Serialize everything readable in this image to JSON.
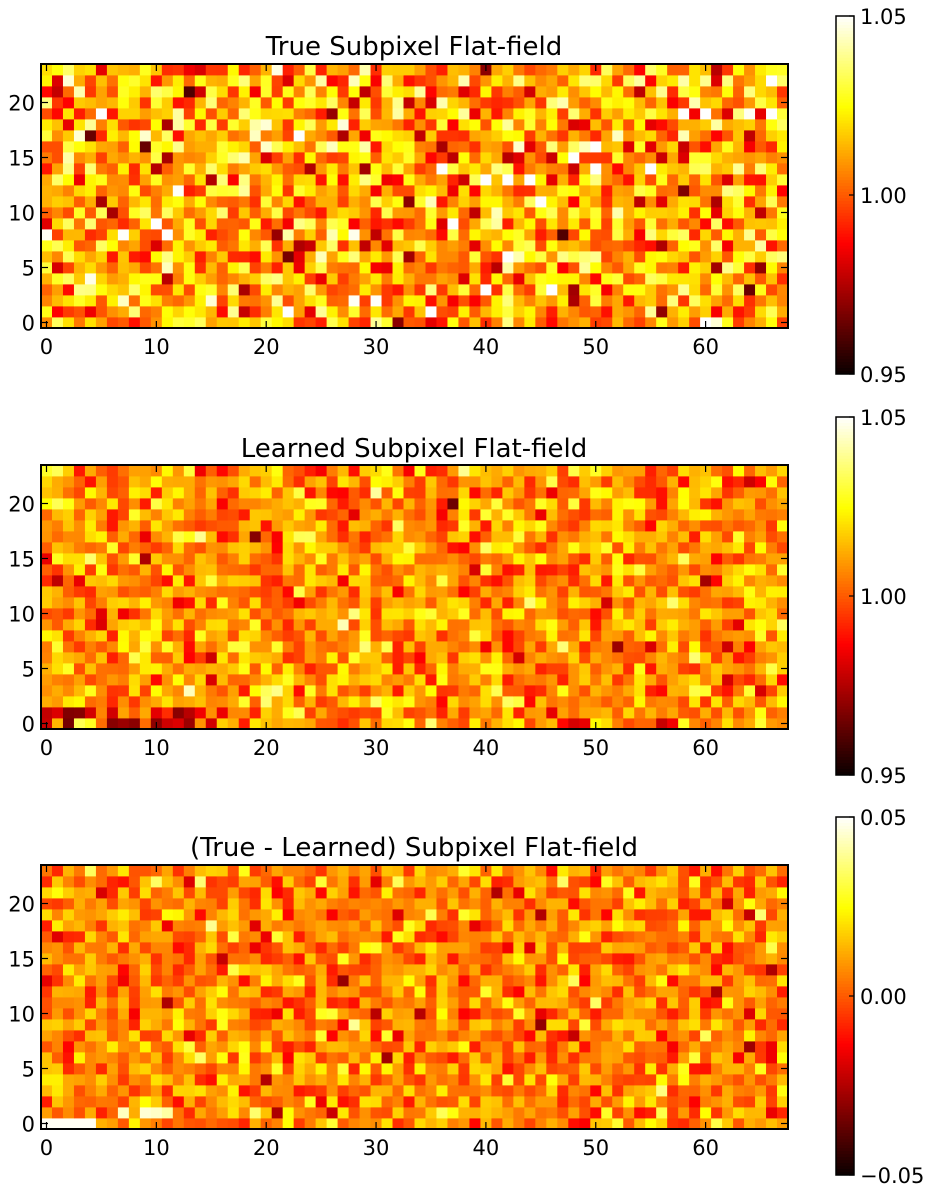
{
  "chart_data": [
    {
      "type": "heatmap",
      "title": "True Subpixel Flat-field",
      "colormap": "hot",
      "grid": false,
      "legend": "colorbar-right",
      "shape": [
        24,
        68
      ],
      "xlim": [
        -0.5,
        67.5
      ],
      "ylim": [
        -0.5,
        23.5
      ],
      "xticks": [
        0,
        10,
        20,
        30,
        40,
        50,
        60
      ],
      "yticks": [
        0,
        5,
        10,
        15,
        20
      ],
      "xtick_labels": [
        "0",
        "10",
        "20",
        "30",
        "40",
        "50",
        "60"
      ],
      "ytick_labels": [
        "0",
        "5",
        "10",
        "15",
        "20"
      ],
      "vmin": 0.95,
      "vmax": 1.05,
      "colorbar_ticks": [
        0.95,
        1.0,
        1.05
      ],
      "colorbar_labels": [
        "0.95",
        "1.00",
        "1.05"
      ],
      "pattern": "uniform-noise",
      "seed": 11
    },
    {
      "type": "heatmap",
      "title": "Learned Subpixel Flat-field",
      "colormap": "hot",
      "grid": false,
      "legend": "colorbar-right",
      "shape": [
        24,
        68
      ],
      "xlim": [
        -0.5,
        67.5
      ],
      "ylim": [
        -0.5,
        23.5
      ],
      "xticks": [
        0,
        10,
        20,
        30,
        40,
        50,
        60
      ],
      "yticks": [
        0,
        5,
        10,
        15,
        20
      ],
      "xtick_labels": [
        "0",
        "10",
        "20",
        "30",
        "40",
        "50",
        "60"
      ],
      "ytick_labels": [
        "0",
        "5",
        "10",
        "15",
        "20"
      ],
      "vmin": 0.95,
      "vmax": 1.05,
      "colorbar_ticks": [
        0.95,
        1.0,
        1.05
      ],
      "colorbar_labels": [
        "0.95",
        "1.00",
        "1.05"
      ],
      "pattern": "smoothed-noise",
      "seed": 27
    },
    {
      "type": "heatmap",
      "title": "(True - Learned) Subpixel Flat-field",
      "colormap": "hot",
      "grid": false,
      "legend": "colorbar-right",
      "shape": [
        24,
        68
      ],
      "xlim": [
        -0.5,
        67.5
      ],
      "ylim": [
        -0.5,
        23.5
      ],
      "xticks": [
        0,
        10,
        20,
        30,
        40,
        50,
        60
      ],
      "yticks": [
        0,
        5,
        10,
        15,
        20
      ],
      "xtick_labels": [
        "0",
        "10",
        "20",
        "30",
        "40",
        "50",
        "60"
      ],
      "ytick_labels": [
        "0",
        "5",
        "10",
        "15",
        "20"
      ],
      "vmin": -0.05,
      "vmax": 0.05,
      "colorbar_ticks": [
        -0.05,
        0.0,
        0.05
      ],
      "colorbar_labels": [
        "−0.05",
        "0.00",
        "0.05"
      ],
      "pattern": "residual-noise",
      "seed": 43
    }
  ]
}
